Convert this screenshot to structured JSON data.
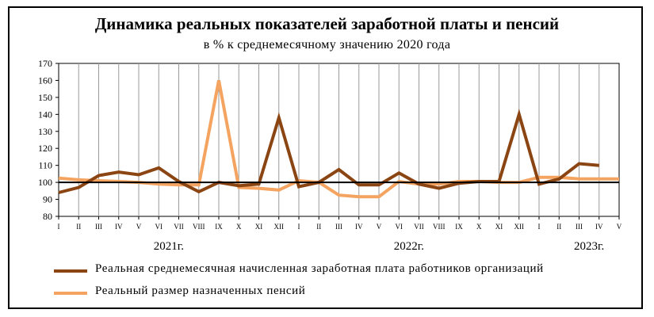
{
  "chart_data": {
    "type": "line",
    "title": "Динамика реальных показателей заработной платы и пенсий",
    "subtitle": "в % к среднемесячному значению 2020 года",
    "x": [
      "I",
      "II",
      "III",
      "IV",
      "V",
      "VI",
      "VII",
      "VIII",
      "IX",
      "X",
      "XI",
      "XII",
      "I",
      "II",
      "III",
      "IV",
      "V",
      "VI",
      "VII",
      "VIII",
      "IX",
      "X",
      "XI",
      "XII",
      "I",
      "II",
      "III",
      "IV",
      "V"
    ],
    "year_labels": [
      {
        "label": "2021г.",
        "index": 5.5
      },
      {
        "label": "2022г.",
        "index": 17.5
      },
      {
        "label": "2023г.",
        "index": 26.5
      }
    ],
    "ylim": [
      80,
      170
    ],
    "yticks": [
      80,
      90,
      100,
      110,
      120,
      130,
      140,
      150,
      160,
      170
    ],
    "reference_line": 100,
    "grid": "vertical",
    "legend_position": "bottom",
    "series": [
      {
        "name": "Реальная среднемесячная начисленная заработная плата работников организаций",
        "color": "#8B4513",
        "values": [
          94,
          97,
          104,
          106,
          104.5,
          108.5,
          100.5,
          94.5,
          100,
          98,
          99,
          138,
          97.5,
          100,
          107.5,
          98.5,
          98.5,
          105.5,
          99,
          96.5,
          99.5,
          100.5,
          100.5,
          140,
          99,
          102,
          111,
          110,
          null
        ]
      },
      {
        "name": "Реальный размер назначенных пенсий",
        "color": "#F4A460",
        "values": [
          102.5,
          101.5,
          101,
          100.5,
          100,
          99,
          98.5,
          98.5,
          160,
          97,
          96.5,
          95.5,
          101,
          100,
          92.5,
          91.5,
          91.5,
          100.5,
          99,
          99,
          100.5,
          100.5,
          100,
          100,
          103,
          103,
          102,
          102,
          102
        ]
      }
    ]
  }
}
